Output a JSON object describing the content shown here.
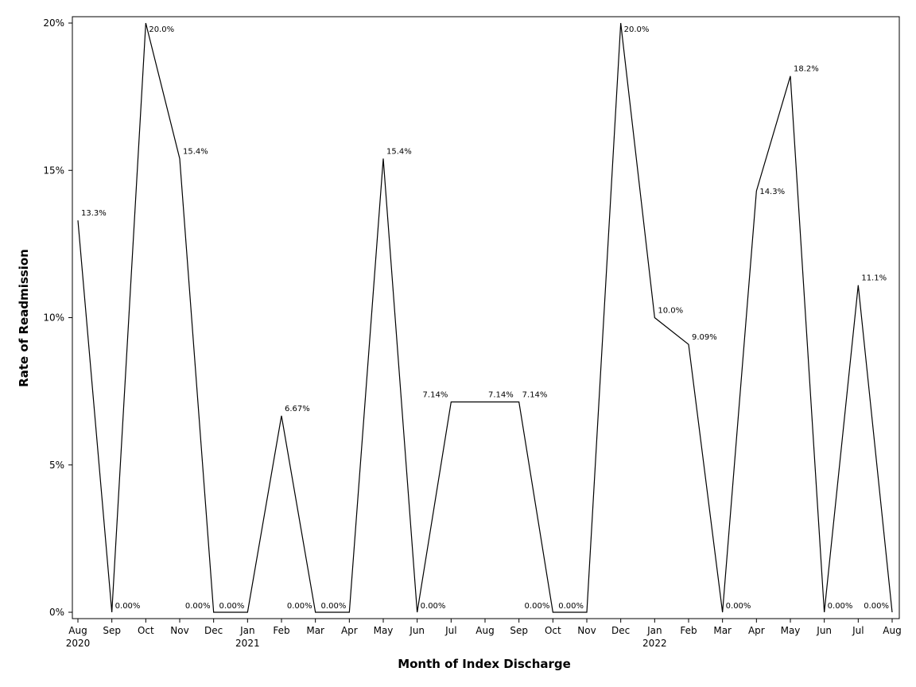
{
  "chart_data": {
    "type": "line",
    "xlabel": "Month of Index Discharge",
    "ylabel": "Rate of Readmission",
    "ylim": [
      0,
      20
    ],
    "yticks": [
      0,
      5,
      10,
      15,
      20
    ],
    "ytick_labels": [
      "0%",
      "5%",
      "10%",
      "15%",
      "20%"
    ],
    "grid": false,
    "categories": [
      "Aug 2020",
      "Sep 2020",
      "Oct 2020",
      "Nov 2020",
      "Dec 2020",
      "Jan 2021",
      "Feb 2021",
      "Mar 2021",
      "Apr 2021",
      "May 2021",
      "Jun 2021",
      "Jul 2021",
      "Aug 2021",
      "Sep 2021",
      "Oct 2021",
      "Nov 2021",
      "Dec 2021",
      "Jan 2022",
      "Feb 2022",
      "Mar 2022",
      "Apr 2022",
      "May 2022",
      "Jun 2022",
      "Jul 2022",
      "Aug 2022"
    ],
    "month_labels": [
      "Aug",
      "Sep",
      "Oct",
      "Nov",
      "Dec",
      "Jan",
      "Feb",
      "Mar",
      "Apr",
      "May",
      "Jun",
      "Jul",
      "Aug",
      "Sep",
      "Oct",
      "Nov",
      "Dec",
      "Jan",
      "Feb",
      "Mar",
      "Apr",
      "May",
      "Jun",
      "Jul",
      "Aug"
    ],
    "year_labels": [
      "2020",
      "",
      "",
      "",
      "",
      "2021",
      "",
      "",
      "",
      "",
      "",
      "",
      "",
      "",
      "",
      "",
      "",
      "2022",
      "",
      "",
      "",
      "",
      "",
      "",
      ""
    ],
    "values": [
      13.3,
      0,
      20.0,
      15.4,
      0,
      0,
      6.67,
      0,
      0,
      15.4,
      0,
      7.14,
      7.14,
      7.14,
      0,
      0,
      20.0,
      10.0,
      9.09,
      0,
      14.3,
      18.2,
      0,
      11.1,
      0
    ],
    "data_labels": [
      "13.3%",
      "0.00%",
      "20.0%",
      "15.4%",
      "0.00%",
      "0.00%",
      "6.67%",
      "0.00%",
      "0.00%",
      "15.4%",
      "0.00%",
      "7.14%",
      "7.14%",
      "7.14%",
      "0.00%",
      "0.00%",
      "20.0%",
      "10.0%",
      "9.09%",
      "0.00%",
      "14.3%",
      "18.2%",
      "0.00%",
      "11.1%",
      "0.00%"
    ],
    "line_color": "#000000"
  }
}
